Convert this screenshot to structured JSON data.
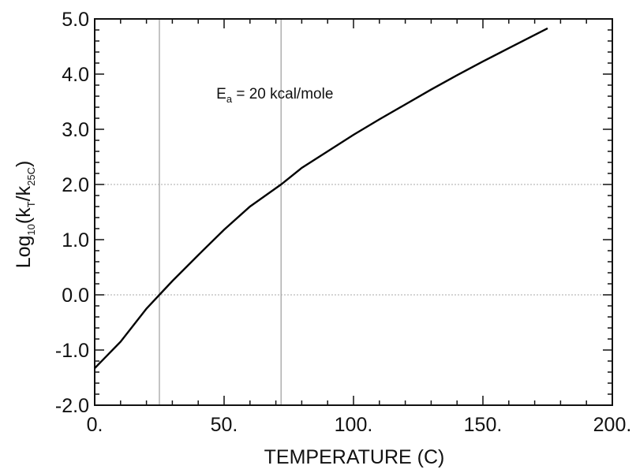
{
  "chart_data": {
    "type": "line",
    "xlabel": "TEMPERATURE (C)",
    "ylabel": {
      "prefix": "Log",
      "sub1": "10",
      "mid": "(k",
      "sub2": "T",
      "mid2": "/k",
      "sub3": "25C",
      "suffix": ")"
    },
    "xlim": [
      0,
      200
    ],
    "ylim": [
      -2,
      5
    ],
    "x_ticks": [
      0,
      50,
      100,
      150,
      200
    ],
    "x_tick_labels": [
      "0.",
      "50.",
      "100.",
      "150.",
      "200."
    ],
    "y_ticks": [
      -2,
      -1,
      0,
      1,
      2,
      3,
      4,
      5
    ],
    "y_tick_labels": [
      "-2.0",
      "-1.0",
      "0.0",
      "1.0",
      "2.0",
      "3.0",
      "4.0",
      "5.0"
    ],
    "annotation": {
      "prefix": "E",
      "sub": "a",
      "rest": " = 20 kcal/mole",
      "x": 47,
      "y": 3.6
    },
    "reference_lines": {
      "vertical": [
        25,
        72
      ],
      "horizontal": [
        0,
        2
      ]
    },
    "series": [
      {
        "x": [
          0,
          10,
          20,
          25,
          30,
          40,
          50,
          60,
          72,
          80,
          90,
          100,
          110,
          120,
          130,
          140,
          150,
          160,
          170,
          175
        ],
        "y": [
          -1.33,
          -0.85,
          -0.25,
          0.0,
          0.25,
          0.72,
          1.18,
          1.6,
          2.0,
          2.3,
          2.6,
          2.9,
          3.18,
          3.45,
          3.72,
          3.98,
          4.23,
          4.47,
          4.71,
          4.83
        ]
      }
    ],
    "grid": false
  }
}
